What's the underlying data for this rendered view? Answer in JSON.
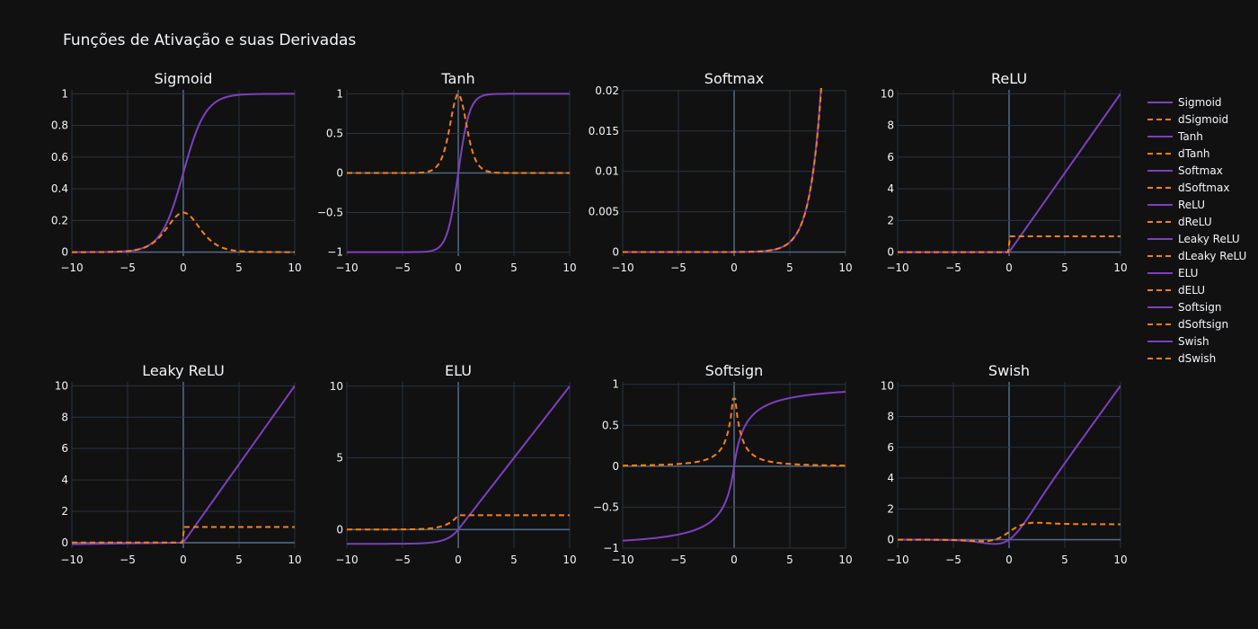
{
  "figure": {
    "title": "Funções de Ativação e suas Derivadas",
    "background": "#111111",
    "grid_color": "#283442",
    "zero_line_color": "#506784",
    "text_color": "#f2f5fa",
    "function_color": "#7f3fbf",
    "derivative_color": "#ff7f0e"
  },
  "chart_data": [
    {
      "type": "line",
      "title": "Sigmoid",
      "function": "sigmoid",
      "xlim": [
        -10,
        10
      ],
      "ylim": [
        -0.025,
        1.025
      ],
      "xticks": [
        -10,
        -5,
        0,
        5,
        10
      ],
      "xtick_labels": [
        "−10",
        "−5",
        "0",
        "5",
        "10"
      ],
      "yticks": [
        0,
        0.2,
        0.4,
        0.6,
        0.8,
        1
      ],
      "ytick_labels": [
        "0",
        "0.2",
        "0.4",
        "0.6",
        "0.8",
        "1"
      ],
      "series": [
        {
          "name": "Sigmoid",
          "style": "solid"
        },
        {
          "name": "dSigmoid",
          "style": "dash"
        }
      ]
    },
    {
      "type": "line",
      "title": "Tanh",
      "function": "tanh",
      "xlim": [
        -10,
        10
      ],
      "ylim": [
        -1.05,
        1.05
      ],
      "xticks": [
        -10,
        -5,
        0,
        5,
        10
      ],
      "xtick_labels": [
        "−10",
        "−5",
        "0",
        "5",
        "10"
      ],
      "yticks": [
        -1,
        -0.5,
        0,
        0.5,
        1
      ],
      "ytick_labels": [
        "−1",
        "−0.5",
        "0",
        "0.5",
        "1"
      ],
      "series": [
        {
          "name": "Tanh",
          "style": "solid"
        },
        {
          "name": "dTanh",
          "style": "dash"
        }
      ]
    },
    {
      "type": "line",
      "title": "Softmax",
      "function": "softmax",
      "xlim": [
        -10,
        10
      ],
      "ylim": [
        -0.0005,
        0.0201
      ],
      "xticks": [
        -10,
        -5,
        0,
        5,
        10
      ],
      "xtick_labels": [
        "−10",
        "−5",
        "0",
        "5",
        "10"
      ],
      "yticks": [
        0,
        0.005,
        0.01,
        0.015,
        0.02
      ],
      "ytick_labels": [
        "0",
        "0.005",
        "0.01",
        "0.015",
        "0.02"
      ],
      "series": [
        {
          "name": "Softmax",
          "style": "solid"
        },
        {
          "name": "dSoftmax",
          "style": "dash"
        }
      ]
    },
    {
      "type": "line",
      "title": "ReLU",
      "function": "relu",
      "xlim": [
        -10,
        10
      ],
      "ylim": [
        -0.25,
        10.25
      ],
      "xticks": [
        -10,
        -5,
        0,
        5,
        10
      ],
      "xtick_labels": [
        "−10",
        "−5",
        "0",
        "5",
        "10"
      ],
      "yticks": [
        0,
        2,
        4,
        6,
        8,
        10
      ],
      "ytick_labels": [
        "0",
        "2",
        "4",
        "6",
        "8",
        "10"
      ],
      "series": [
        {
          "name": "ReLU",
          "style": "solid"
        },
        {
          "name": "dReLU",
          "style": "dash"
        }
      ]
    },
    {
      "type": "line",
      "title": "Leaky ReLU",
      "function": "leaky_relu",
      "xlim": [
        -10,
        10
      ],
      "ylim": [
        -0.35,
        10.25
      ],
      "xticks": [
        -10,
        -5,
        0,
        5,
        10
      ],
      "xtick_labels": [
        "−10",
        "−5",
        "0",
        "5",
        "10"
      ],
      "yticks": [
        0,
        2,
        4,
        6,
        8,
        10
      ],
      "ytick_labels": [
        "0",
        "2",
        "4",
        "6",
        "8",
        "10"
      ],
      "series": [
        {
          "name": "Leaky ReLU",
          "style": "solid"
        },
        {
          "name": "dLeaky ReLU",
          "style": "dash"
        }
      ]
    },
    {
      "type": "line",
      "title": "ELU",
      "function": "elu",
      "xlim": [
        -10,
        10
      ],
      "ylim": [
        -1.3,
        10.3
      ],
      "xticks": [
        -10,
        -5,
        0,
        5,
        10
      ],
      "xtick_labels": [
        "−10",
        "−5",
        "0",
        "5",
        "10"
      ],
      "yticks": [
        0,
        5,
        10
      ],
      "ytick_labels": [
        "0",
        "5",
        "10"
      ],
      "series": [
        {
          "name": "ELU",
          "style": "solid"
        },
        {
          "name": "dELU",
          "style": "dash"
        }
      ]
    },
    {
      "type": "line",
      "title": "Softsign",
      "function": "softsign",
      "xlim": [
        -10,
        10
      ],
      "ylim": [
        -1,
        1.03
      ],
      "xticks": [
        -10,
        -5,
        0,
        5,
        10
      ],
      "xtick_labels": [
        "−10",
        "−5",
        "0",
        "5",
        "10"
      ],
      "yticks": [
        -1,
        -0.5,
        0,
        0.5,
        1
      ],
      "ytick_labels": [
        "−1",
        "−0.5",
        "0",
        "0.5",
        "1"
      ],
      "series": [
        {
          "name": "Softsign",
          "style": "solid"
        },
        {
          "name": "dSoftsign",
          "style": "dash"
        }
      ]
    },
    {
      "type": "line",
      "title": "Swish",
      "function": "swish",
      "xlim": [
        -10,
        10
      ],
      "ylim": [
        -0.55,
        10.25
      ],
      "xticks": [
        -10,
        -5,
        0,
        5,
        10
      ],
      "xtick_labels": [
        "−10",
        "−5",
        "0",
        "5",
        "10"
      ],
      "yticks": [
        0,
        2,
        4,
        6,
        8,
        10
      ],
      "ytick_labels": [
        "0",
        "2",
        "4",
        "6",
        "8",
        "10"
      ],
      "series": [
        {
          "name": "Swish",
          "style": "solid"
        },
        {
          "name": "dSwish",
          "style": "dash"
        }
      ]
    }
  ],
  "legend": {
    "position": "right",
    "entries": [
      {
        "label": "Sigmoid",
        "style": "solid"
      },
      {
        "label": "dSigmoid",
        "style": "dash"
      },
      {
        "label": "Tanh",
        "style": "solid"
      },
      {
        "label": "dTanh",
        "style": "dash"
      },
      {
        "label": "Softmax",
        "style": "solid"
      },
      {
        "label": "dSoftmax",
        "style": "dash"
      },
      {
        "label": "ReLU",
        "style": "solid"
      },
      {
        "label": "dReLU",
        "style": "dash"
      },
      {
        "label": "Leaky ReLU",
        "style": "solid"
      },
      {
        "label": "dLeaky ReLU",
        "style": "dash"
      },
      {
        "label": "ELU",
        "style": "solid"
      },
      {
        "label": "dELU",
        "style": "dash"
      },
      {
        "label": "Softsign",
        "style": "solid"
      },
      {
        "label": "dSoftsign",
        "style": "dash"
      },
      {
        "label": "Swish",
        "style": "solid"
      },
      {
        "label": "dSwish",
        "style": "dash"
      }
    ]
  }
}
